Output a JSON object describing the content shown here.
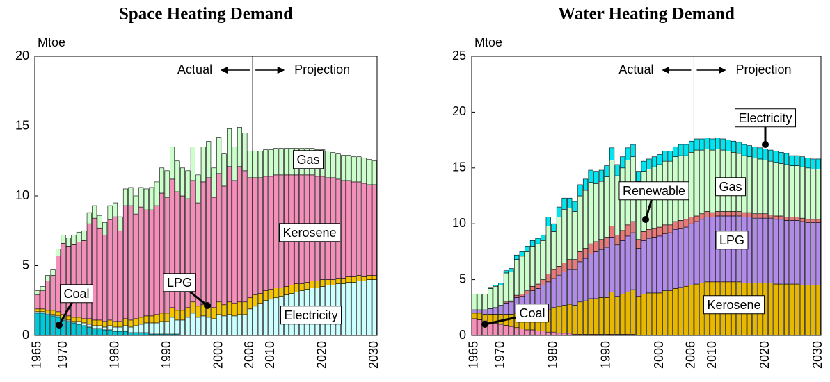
{
  "chart_data": [
    {
      "type": "bar",
      "stacked": true,
      "title": "Space Heating Demand",
      "y_label": "Mtoe",
      "annotations": {
        "actual": "Actual",
        "projection": "Projection"
      },
      "categories": [
        "1965",
        null,
        null,
        null,
        null,
        "1970",
        null,
        null,
        null,
        null,
        null,
        null,
        null,
        null,
        null,
        "1980",
        null,
        null,
        null,
        null,
        null,
        null,
        null,
        null,
        null,
        "1990",
        null,
        null,
        null,
        null,
        null,
        null,
        null,
        null,
        null,
        "2000",
        null,
        null,
        null,
        null,
        null,
        "2006",
        null,
        null,
        null,
        "2010",
        null,
        null,
        null,
        null,
        null,
        null,
        null,
        null,
        null,
        "2020",
        null,
        null,
        null,
        null,
        null,
        null,
        null,
        null,
        null,
        "2030"
      ],
      "ylim": [
        0,
        20
      ],
      "yticks": [
        0,
        5,
        10,
        15,
        20
      ],
      "series": [
        {
          "name": "Coal",
          "color": "#00c8d8",
          "values": [
            1.6,
            1.6,
            1.5,
            1.4,
            1.3,
            1.1,
            1.0,
            0.9,
            0.8,
            0.7,
            0.6,
            0.5,
            0.5,
            0.4,
            0.4,
            0.3,
            0.3,
            0.3,
            0.2,
            0.2,
            0.2,
            0.2,
            0.1,
            0.1,
            0.1,
            0.1,
            0.1,
            0.1,
            0,
            0,
            0,
            0,
            0,
            0,
            0,
            0,
            0,
            0,
            0,
            0,
            0,
            0,
            0,
            0,
            0,
            0,
            0,
            0,
            0,
            0,
            0,
            0,
            0,
            0,
            0,
            0,
            0,
            0,
            0,
            0,
            0,
            0,
            0,
            0,
            0,
            0
          ]
        },
        {
          "name": "Electricity",
          "color": "#ccffff",
          "values": [
            0.1,
            0.1,
            0.1,
            0.1,
            0.1,
            0.1,
            0.1,
            0.1,
            0.2,
            0.2,
            0.2,
            0.2,
            0.2,
            0.2,
            0.3,
            0.3,
            0.3,
            0.4,
            0.4,
            0.5,
            0.6,
            0.7,
            0.8,
            0.8,
            0.9,
            0.9,
            1.2,
            1.0,
            1.1,
            1.3,
            1.6,
            1.3,
            1.4,
            1.3,
            1.2,
            1.5,
            1.4,
            1.5,
            1.4,
            1.5,
            1.5,
            1.9,
            2.1,
            2.3,
            2.5,
            2.6,
            2.7,
            2.8,
            2.9,
            3.0,
            3.1,
            3.2,
            3.3,
            3.4,
            3.4,
            3.5,
            3.6,
            3.6,
            3.7,
            3.7,
            3.8,
            3.8,
            3.9,
            3.9,
            4.0,
            4.0
          ]
        },
        {
          "name": "LPG",
          "color": "#f5c400",
          "values": [
            0.2,
            0.2,
            0.2,
            0.3,
            0.3,
            0.3,
            0.3,
            0.3,
            0.3,
            0.3,
            0.4,
            0.4,
            0.4,
            0.4,
            0.4,
            0.4,
            0.4,
            0.5,
            0.5,
            0.5,
            0.5,
            0.5,
            0.5,
            0.6,
            0.6,
            0.6,
            0.7,
            0.7,
            0.7,
            0.7,
            0.8,
            0.8,
            0.8,
            0.8,
            0.8,
            0.9,
            0.8,
            0.9,
            0.9,
            0.9,
            0.9,
            0.8,
            0.8,
            0.7,
            0.7,
            0.7,
            0.7,
            0.6,
            0.6,
            0.6,
            0.6,
            0.5,
            0.5,
            0.5,
            0.5,
            0.5,
            0.4,
            0.4,
            0.4,
            0.4,
            0.4,
            0.4,
            0.4,
            0.3,
            0.3,
            0.3
          ]
        },
        {
          "name": "Kerosene",
          "color": "#f48fb9",
          "values": [
            1.0,
            1.3,
            2.1,
            2.5,
            4.0,
            5.1,
            5.0,
            5.2,
            5.4,
            5.6,
            6.8,
            7.3,
            6.6,
            6.2,
            7.2,
            7.5,
            6.5,
            8.1,
            8.2,
            7.5,
            7.9,
            7.6,
            7.6,
            7.8,
            8.6,
            8.3,
            9.2,
            8.5,
            8.2,
            7.8,
            8.7,
            7.4,
            8.8,
            9.2,
            7.9,
            9.2,
            8.5,
            9.7,
            8.8,
            9.7,
            9.4,
            8.6,
            8.4,
            8.3,
            8.2,
            8.1,
            8.1,
            8.1,
            8.0,
            7.9,
            7.8,
            7.8,
            7.7,
            7.6,
            7.5,
            7.4,
            7.3,
            7.3,
            7.1,
            7.0,
            6.9,
            6.8,
            6.7,
            6.7,
            6.5,
            6.5
          ]
        },
        {
          "name": "Gas",
          "color": "#ccffcc",
          "values": [
            0.3,
            0.3,
            0.4,
            0.4,
            0.5,
            0.6,
            0.6,
            0.7,
            0.7,
            0.7,
            0.8,
            0.9,
            0.9,
            0.9,
            1.0,
            1.0,
            1.0,
            1.2,
            1.3,
            1.3,
            1.4,
            1.5,
            1.6,
            1.7,
            1.8,
            1.9,
            2.3,
            2.2,
            2.0,
            2.0,
            2.4,
            2.0,
            2.5,
            2.6,
            2.1,
            2.6,
            2.3,
            2.7,
            2.4,
            2.8,
            2.7,
            1.9,
            1.9,
            1.9,
            1.9,
            1.9,
            1.9,
            1.9,
            1.9,
            1.9,
            1.9,
            1.9,
            1.9,
            1.9,
            1.9,
            1.9,
            1.9,
            1.8,
            1.8,
            1.8,
            1.8,
            1.8,
            1.8,
            1.8,
            1.8,
            1.7
          ]
        }
      ]
    },
    {
      "type": "bar",
      "stacked": true,
      "title": "Water Heating Demand",
      "y_label": "Mtoe",
      "annotations": {
        "actual": "Actual",
        "projection": "Projection"
      },
      "categories": [
        "1965",
        null,
        null,
        null,
        null,
        "1970",
        null,
        null,
        null,
        null,
        null,
        null,
        null,
        null,
        null,
        "1980",
        null,
        null,
        null,
        null,
        null,
        null,
        null,
        null,
        null,
        "1990",
        null,
        null,
        null,
        null,
        null,
        null,
        null,
        null,
        null,
        "2000",
        null,
        null,
        null,
        null,
        null,
        "2006",
        null,
        null,
        null,
        "2010",
        null,
        null,
        null,
        null,
        null,
        null,
        null,
        null,
        null,
        "2020",
        null,
        null,
        null,
        null,
        null,
        null,
        null,
        null,
        null,
        "2030"
      ],
      "ylim": [
        0,
        25
      ],
      "yticks": [
        0,
        5,
        10,
        15,
        20,
        25
      ],
      "series": [
        {
          "name": "Coal",
          "color": "#f48fb9",
          "values": [
            1.5,
            1.4,
            1.3,
            1.2,
            1.1,
            1.0,
            0.9,
            0.8,
            0.7,
            0.6,
            0.5,
            0.5,
            0.4,
            0.4,
            0.3,
            0.3,
            0.2,
            0.2,
            0.2,
            0.1,
            0.1,
            0.1,
            0.1,
            0.1,
            0.1,
            0.1,
            0.1,
            0.1,
            0.1,
            0.1,
            0.1,
            0,
            0,
            0,
            0,
            0,
            0,
            0,
            0,
            0,
            0,
            0,
            0,
            0,
            0,
            0,
            0,
            0,
            0,
            0,
            0,
            0,
            0,
            0,
            0,
            0,
            0,
            0,
            0,
            0,
            0,
            0,
            0,
            0,
            0,
            0
          ]
        },
        {
          "name": "Kerosene",
          "color": "#e8b800",
          "values": [
            0.5,
            0.6,
            0.6,
            0.7,
            0.8,
            0.9,
            1.0,
            1.1,
            1.3,
            1.4,
            1.5,
            1.6,
            1.7,
            1.8,
            2.0,
            2.2,
            2.4,
            2.5,
            2.6,
            2.6,
            2.9,
            3.0,
            3.2,
            3.2,
            3.3,
            3.3,
            3.8,
            3.4,
            3.6,
            3.8,
            4.0,
            3.5,
            3.7,
            3.8,
            3.8,
            3.8,
            4.0,
            4.0,
            4.2,
            4.3,
            4.4,
            4.5,
            4.6,
            4.7,
            4.8,
            4.8,
            4.8,
            4.8,
            4.8,
            4.8,
            4.8,
            4.7,
            4.7,
            4.7,
            4.7,
            4.7,
            4.7,
            4.6,
            4.6,
            4.6,
            4.6,
            4.6,
            4.5,
            4.5,
            4.5,
            4.5
          ]
        },
        {
          "name": "LPG",
          "color": "#b08be8",
          "values": [
            0.3,
            0.3,
            0.4,
            0.5,
            0.6,
            0.8,
            1.0,
            1.1,
            1.4,
            1.5,
            1.7,
            1.9,
            2.1,
            2.3,
            2.5,
            2.6,
            2.8,
            3.0,
            3.1,
            3.2,
            3.6,
            3.8,
            4.0,
            4.2,
            4.3,
            4.5,
            4.9,
            4.6,
            4.8,
            5.0,
            5.1,
            4.3,
            4.8,
            4.9,
            5.0,
            5.1,
            5.1,
            5.2,
            5.3,
            5.3,
            5.3,
            5.5,
            5.6,
            5.7,
            5.8,
            5.8,
            5.9,
            5.9,
            5.9,
            5.9,
            5.9,
            5.9,
            5.9,
            5.8,
            5.8,
            5.8,
            5.8,
            5.8,
            5.8,
            5.7,
            5.7,
            5.7,
            5.7,
            5.6,
            5.6,
            5.6
          ]
        },
        {
          "name": "Renewable",
          "color": "#e87a7a",
          "values": [
            0,
            0,
            0,
            0,
            0,
            0,
            0.1,
            0.1,
            0.2,
            0.2,
            0.3,
            0.4,
            0.4,
            0.5,
            0.7,
            0.8,
            0.8,
            0.8,
            0.9,
            0.9,
            0.9,
            0.9,
            0.9,
            0.9,
            0.9,
            0.9,
            1.0,
            0.9,
            0.9,
            1.0,
            1.0,
            0.8,
            0.8,
            0.8,
            0.8,
            0.8,
            0.8,
            0.7,
            0.7,
            0.7,
            0.7,
            0.6,
            0.5,
            0.5,
            0.5,
            0.4,
            0.4,
            0.4,
            0.4,
            0.4,
            0.4,
            0.4,
            0.4,
            0.4,
            0.4,
            0.4,
            0.3,
            0.3,
            0.3,
            0.3,
            0.3,
            0.3,
            0.3,
            0.3,
            0.3,
            0.3
          ]
        },
        {
          "name": "Gas",
          "color": "#ccffcc",
          "values": [
            1.4,
            1.4,
            1.4,
            1.8,
            1.9,
            1.8,
            2.6,
            2.6,
            3.2,
            3.4,
            3.5,
            3.6,
            3.6,
            3.5,
            4.3,
            3.4,
            4.4,
            4.8,
            4.6,
            4.3,
            5.0,
            5.2,
            5.5,
            5.2,
            5.2,
            5.4,
            5.9,
            5.3,
            5.6,
            5.8,
            5.8,
            5.2,
            5.4,
            5.4,
            5.5,
            5.6,
            5.7,
            5.7,
            5.8,
            5.8,
            5.7,
            5.8,
            5.9,
            5.7,
            5.6,
            5.6,
            5.6,
            5.5,
            5.4,
            5.3,
            5.2,
            5.1,
            5.0,
            5.0,
            4.9,
            4.8,
            4.8,
            4.8,
            4.7,
            4.7,
            4.6,
            4.6,
            4.6,
            4.6,
            4.5,
            4.5
          ]
        },
        {
          "name": "Electricity",
          "color": "#00e5f0",
          "values": [
            0,
            0,
            0,
            0.1,
            0.1,
            0.2,
            0.2,
            0.3,
            0.4,
            0.4,
            0.5,
            0.5,
            0.5,
            0.5,
            0.8,
            0.7,
            0.9,
            1.0,
            0.9,
            0.9,
            1.0,
            1.0,
            1.1,
            1.1,
            1.0,
            1.0,
            1.1,
            1.0,
            1.0,
            1.1,
            1.1,
            0.9,
            0.9,
            0.9,
            0.9,
            0.9,
            0.9,
            0.9,
            0.9,
            1.0,
            1.0,
            1.0,
            1.0,
            1.0,
            1.0,
            1.0,
            1.0,
            1.0,
            1.0,
            1.0,
            1.0,
            1.0,
            1.0,
            1.0,
            1.0,
            1.0,
            1.0,
            1.0,
            1.0,
            1.0,
            0.9,
            0.9,
            0.9,
            0.9,
            0.9,
            0.9
          ]
        }
      ]
    }
  ]
}
